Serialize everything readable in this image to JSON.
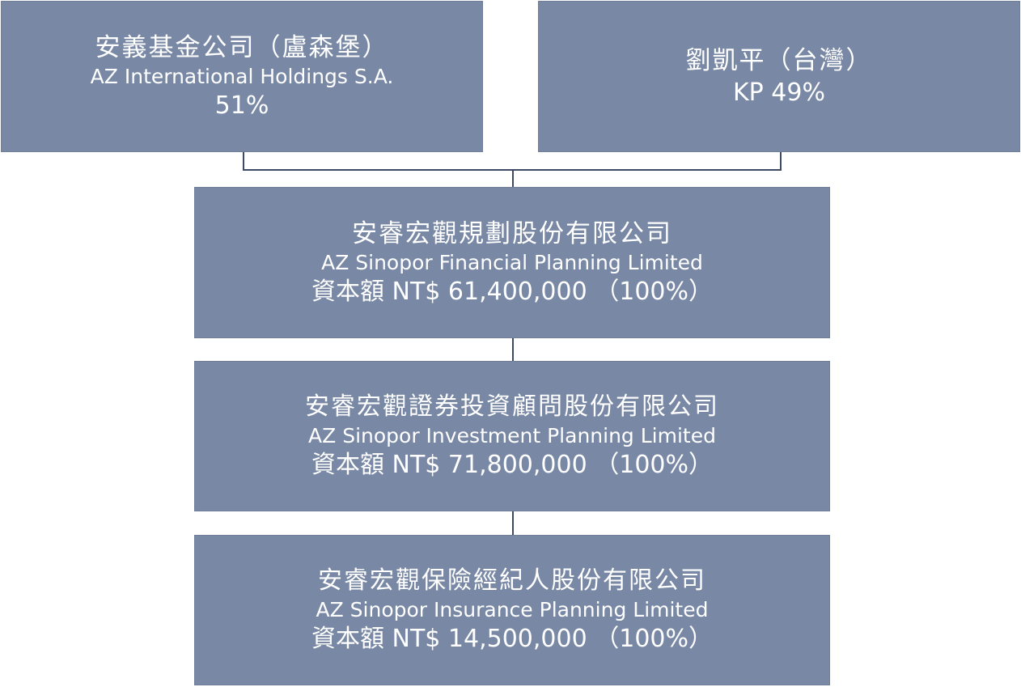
{
  "shareholders": [
    {
      "name_zh": "安義基金公司（盧森堡）",
      "name_en": "AZ International Holdings S.A.",
      "share": "51%"
    },
    {
      "name_zh": "劉凱平（台灣）",
      "share": "KP 49%"
    }
  ],
  "companies": [
    {
      "name_zh": "安睿宏觀規劃股份有限公司",
      "name_en": "AZ Sinopor Financial Planning Limited",
      "capital": "資本額 NT$ 61,400,000 （100%）"
    },
    {
      "name_zh": "安睿宏觀證券投資顧問股份有限公司",
      "name_en": "AZ Sinopor Investment Planning Limited",
      "capital": "資本額 NT$ 71,800,000 （100%）"
    },
    {
      "name_zh": "安睿宏觀保險經紀人股份有限公司",
      "name_en": "AZ Sinopor Insurance Planning Limited",
      "capital": "資本額 NT$ 14,500,000 （100%）"
    }
  ],
  "colors": {
    "box_fill": "#7888a5",
    "box_text": "#ffffff",
    "connector": "#3e4a63"
  }
}
